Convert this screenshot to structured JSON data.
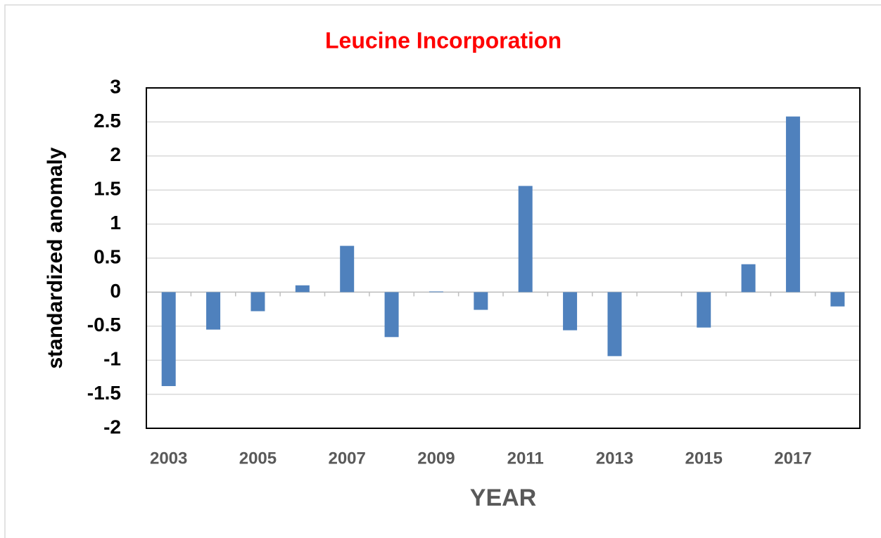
{
  "chart_data": {
    "type": "bar",
    "title": "Leucine Incorporation",
    "x_label": "YEAR",
    "y_label": "standardized anomaly",
    "categories": [
      "2003",
      null,
      "2005",
      null,
      "2007",
      null,
      "2009",
      null,
      "2011",
      null,
      "2013",
      null,
      "2015",
      null,
      "2017",
      null
    ],
    "values": [
      -1.38,
      -0.55,
      -0.28,
      0.1,
      0.68,
      -0.66,
      0.01,
      -0.26,
      1.56,
      -0.56,
      -0.94,
      0,
      -0.52,
      0.41,
      2.58,
      -0.21
    ],
    "color": "#4f81bd",
    "ylim": [
      -2,
      3
    ],
    "yticks": [
      -2,
      -1.5,
      -1,
      -0.5,
      0,
      0.5,
      1,
      1.5,
      2,
      2.5,
      3
    ],
    "grid": true
  }
}
